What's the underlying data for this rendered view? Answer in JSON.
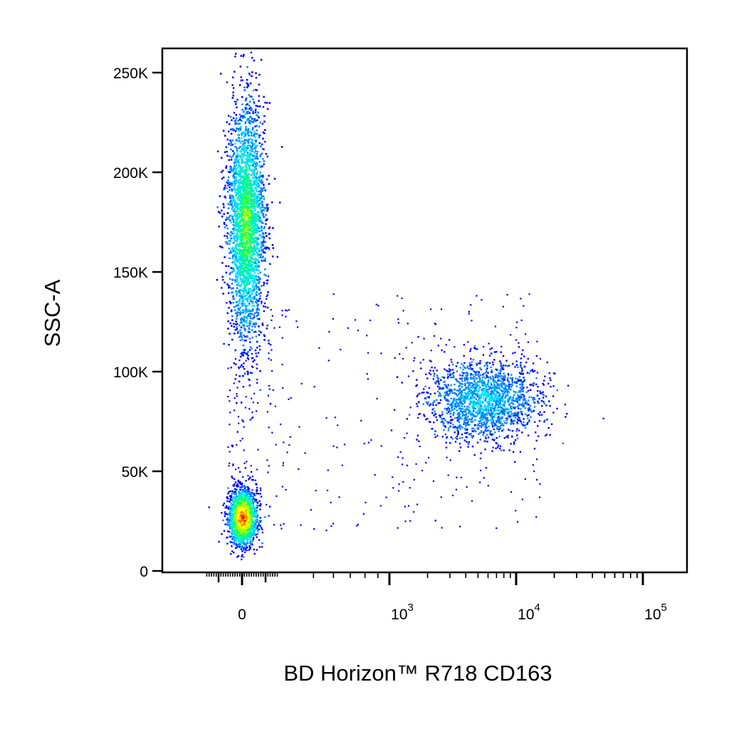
{
  "chart_data": {
    "type": "scatter",
    "plot_style": "flow cytometry pseudocolor density dot plot",
    "xlabel": "BD Horizon™ R718 CD163",
    "ylabel": "SSC-A",
    "x_scale": "biexponential (linear near 0, log above ~10^2.5)",
    "y_scale": "linear",
    "xlim": [
      -300,
      120000
    ],
    "ylim": [
      -5000,
      265000
    ],
    "x_tick_labels": [
      {
        "value": 0,
        "base": "0",
        "exp": ""
      },
      {
        "value": 1000,
        "base": "10",
        "exp": "3"
      },
      {
        "value": 10000,
        "base": "10",
        "exp": "4"
      },
      {
        "value": 100000,
        "base": "10",
        "exp": "5"
      }
    ],
    "y_tick_labels": [
      {
        "value": 0,
        "label": "0"
      },
      {
        "value": 50000,
        "label": "50K"
      },
      {
        "value": 100000,
        "label": "100K"
      },
      {
        "value": 150000,
        "label": "150K"
      },
      {
        "value": 200000,
        "label": "200K"
      },
      {
        "value": 250000,
        "label": "250K"
      }
    ],
    "density_colors": [
      "#0000ff",
      "#0080ff",
      "#00e0ff",
      "#00ff80",
      "#a0ff00",
      "#ffff00",
      "#ff8000",
      "#ff0000"
    ],
    "populations": [
      {
        "name": "CD163-negative, high SSC",
        "cx": 30,
        "cy": 175000,
        "sx": 80,
        "sy": 30000,
        "share": 0.55,
        "peak_color": "#a0ff00"
      },
      {
        "name": "debris / low SSC",
        "cx": 0,
        "cy": 27000,
        "sx": 60,
        "sy": 7000,
        "share": 0.2,
        "peak_color": "#ff0000"
      },
      {
        "name": "CD163-positive",
        "cx": 5500,
        "cy": 86000,
        "log_sx": 0.22,
        "sy": 10000,
        "share": 0.2,
        "peak_color": "#00e0ff"
      }
    ],
    "grid": false,
    "legend": "none"
  }
}
